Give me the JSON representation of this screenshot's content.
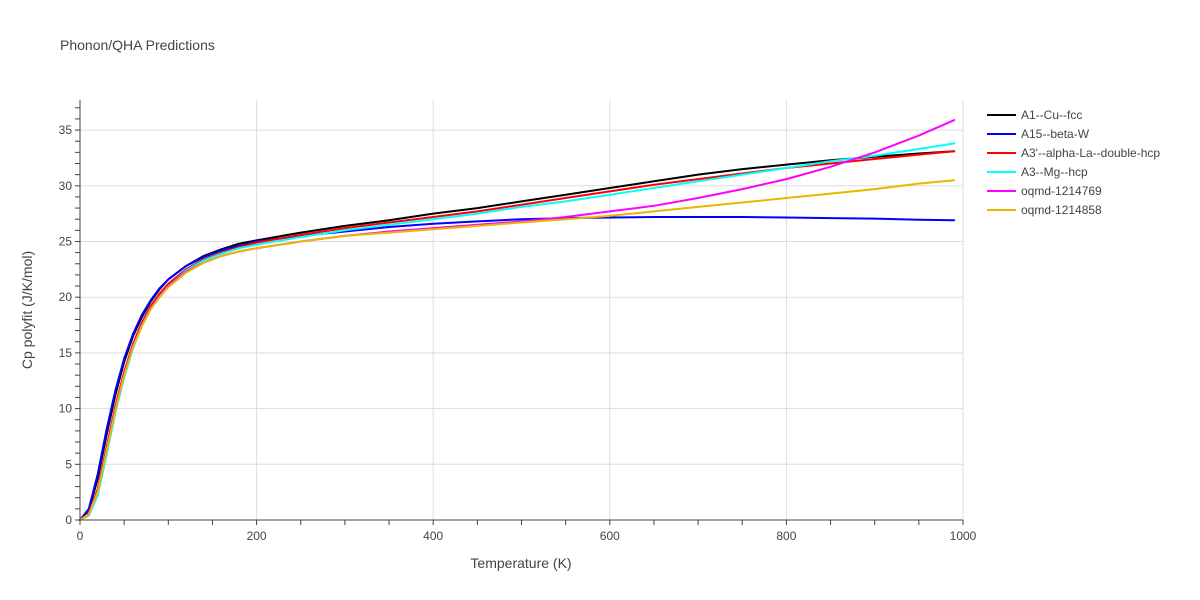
{
  "chart_data": {
    "type": "line",
    "title": "Phonon/QHA Predictions",
    "xlabel": "Temperature (K)",
    "ylabel": "Cp polyfit (J/K/mol)",
    "xlim": [
      0,
      1000
    ],
    "ylim": [
      0,
      37.7
    ],
    "x_ticks": [
      0,
      200,
      400,
      600,
      800,
      1000
    ],
    "y_ticks": [
      0,
      5,
      10,
      15,
      20,
      25,
      30,
      35
    ],
    "grid": true,
    "legend_position": "right",
    "x": [
      0,
      10,
      20,
      30,
      40,
      50,
      60,
      70,
      80,
      90,
      100,
      120,
      140,
      160,
      180,
      200,
      250,
      300,
      350,
      400,
      450,
      500,
      550,
      600,
      650,
      700,
      750,
      800,
      850,
      900,
      950,
      990
    ],
    "series": [
      {
        "name": "A1--Cu--fcc",
        "color": "#000000",
        "values": [
          0,
          0.9,
          3.7,
          7.6,
          11.2,
          14.2,
          16.5,
          18.2,
          19.6,
          20.7,
          21.6,
          22.8,
          23.7,
          24.3,
          24.8,
          25.1,
          25.8,
          26.4,
          26.9,
          27.5,
          28.0,
          28.6,
          29.2,
          29.8,
          30.4,
          31.0,
          31.5,
          31.9,
          32.3,
          32.6,
          32.9,
          33.1
        ]
      },
      {
        "name": "A15--beta-W",
        "color": "#0000ff",
        "values": [
          0,
          1.0,
          4.1,
          8.1,
          11.6,
          14.5,
          16.7,
          18.4,
          19.7,
          20.8,
          21.6,
          22.8,
          23.6,
          24.2,
          24.6,
          25.0,
          25.5,
          25.9,
          26.3,
          26.6,
          26.8,
          27.0,
          27.1,
          27.15,
          27.2,
          27.2,
          27.2,
          27.15,
          27.1,
          27.05,
          26.95,
          26.9
        ]
      },
      {
        "name": "A3'--alpha-La--double-hcp",
        "color": "#ff0000",
        "values": [
          0,
          0.6,
          2.8,
          6.5,
          10.2,
          13.3,
          15.8,
          17.7,
          19.2,
          20.3,
          21.2,
          22.5,
          23.4,
          24.0,
          24.5,
          24.9,
          25.6,
          26.2,
          26.7,
          27.2,
          27.7,
          28.3,
          28.9,
          29.5,
          30.1,
          30.6,
          31.1,
          31.6,
          32.0,
          32.4,
          32.8,
          33.1
        ]
      },
      {
        "name": "A3--Mg--hcp",
        "color": "#00ffff",
        "values": [
          0,
          0.4,
          2.2,
          5.8,
          9.6,
          12.8,
          15.4,
          17.4,
          18.9,
          20.1,
          21.0,
          22.4,
          23.3,
          23.9,
          24.4,
          24.7,
          25.4,
          26.0,
          26.5,
          27.0,
          27.5,
          28.1,
          28.6,
          29.2,
          29.8,
          30.4,
          31.0,
          31.6,
          32.2,
          32.7,
          33.3,
          33.8
        ]
      },
      {
        "name": "oqmd-1214769",
        "color": "#ff00ff",
        "values": [
          0,
          0.5,
          2.6,
          6.3,
          10.0,
          13.1,
          15.6,
          17.5,
          19.0,
          20.1,
          21.0,
          22.3,
          23.1,
          23.7,
          24.1,
          24.4,
          25.0,
          25.5,
          25.9,
          26.2,
          26.5,
          26.8,
          27.2,
          27.7,
          28.2,
          28.9,
          29.7,
          30.6,
          31.7,
          33.0,
          34.5,
          35.9
        ]
      },
      {
        "name": "oqmd-1214858",
        "color": "#e6b800",
        "values": [
          0,
          0.5,
          2.5,
          6.1,
          9.8,
          13.0,
          15.5,
          17.4,
          18.9,
          20.0,
          20.9,
          22.2,
          23.1,
          23.7,
          24.1,
          24.4,
          25.0,
          25.5,
          25.8,
          26.1,
          26.4,
          26.7,
          27.0,
          27.3,
          27.7,
          28.1,
          28.5,
          28.9,
          29.3,
          29.7,
          30.2,
          30.5
        ]
      }
    ]
  }
}
